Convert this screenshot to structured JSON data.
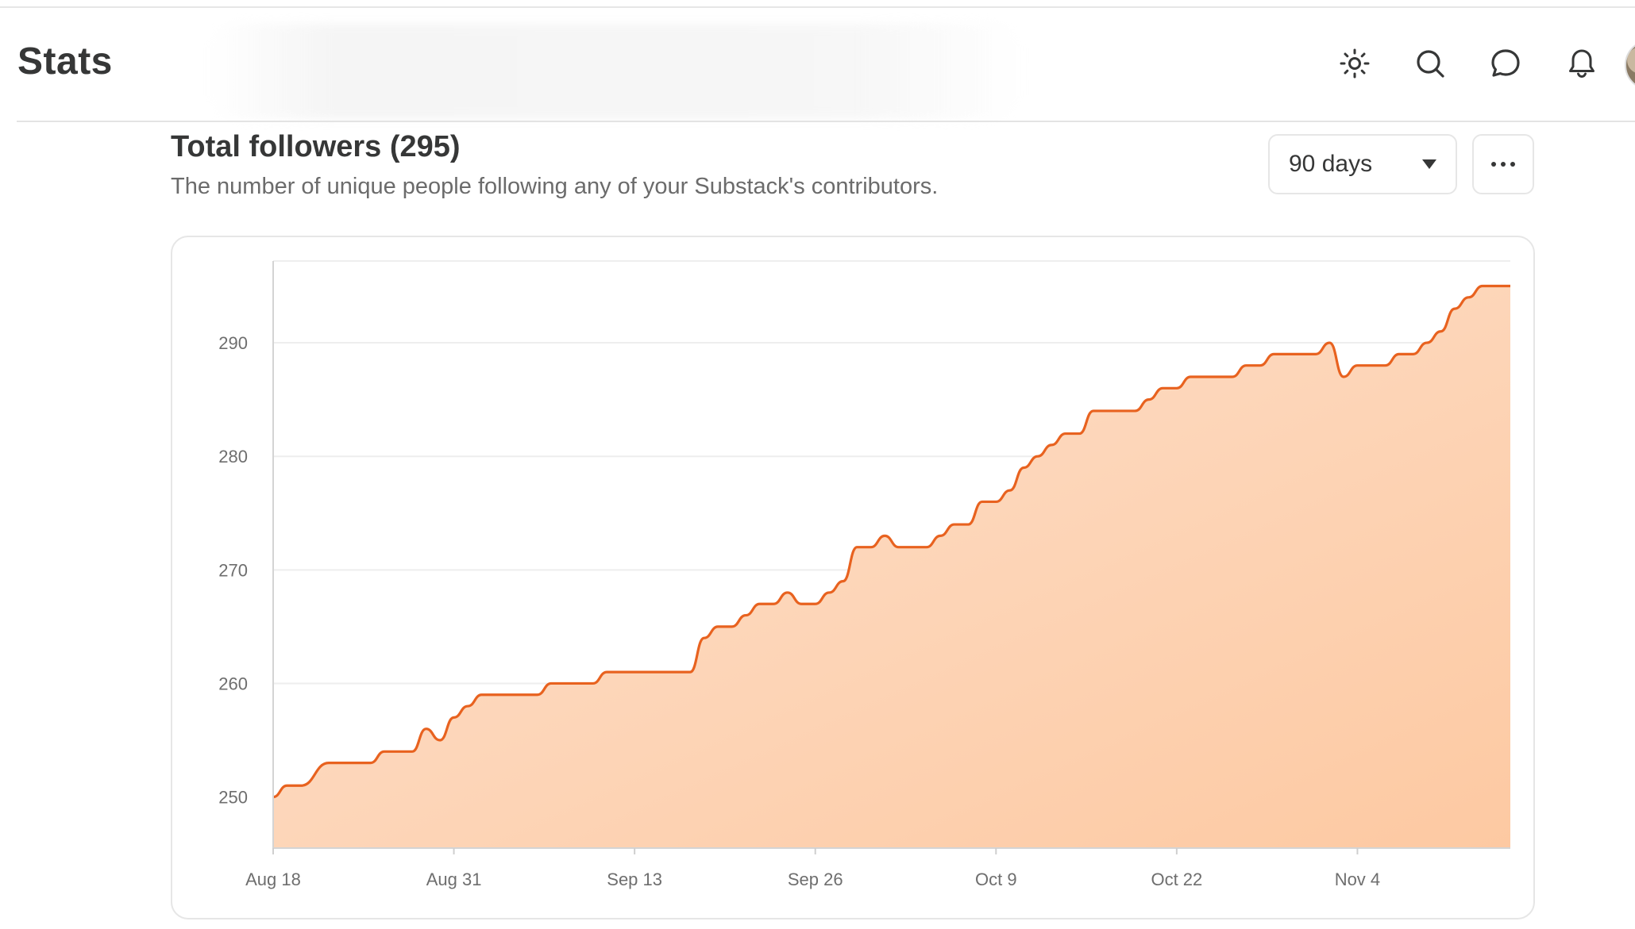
{
  "header": {
    "title": "Stats",
    "icons": [
      "sun-icon",
      "search-icon",
      "chat-icon",
      "bell-icon"
    ]
  },
  "section": {
    "title": "Total followers (295)",
    "subtitle": "The number of unique people following any of your Substack's contributors."
  },
  "controls": {
    "range_label": "90 days",
    "more_icon": "more-horizontal-icon"
  },
  "colors": {
    "line": "#e8621f",
    "fill_top": "#fdc9a2",
    "fill_bottom": "#fde2cf",
    "grid": "#eeeeee",
    "text": "#363737",
    "muted": "#6b6b6b"
  },
  "chart_data": {
    "type": "area",
    "title": "",
    "xlabel": "",
    "ylabel": "",
    "x_tick_labels": [
      "Aug 18",
      "Aug 31",
      "Sep 13",
      "Sep 26",
      "Oct 9",
      "Oct 22",
      "Nov 4"
    ],
    "y_ticks": [
      250,
      260,
      270,
      280,
      290
    ],
    "ylim": [
      245.5,
      297.2
    ],
    "grid": true,
    "series": [
      {
        "name": "",
        "points": [
          {
            "x": "Aug 18",
            "y": 250
          },
          {
            "x": "Aug 19",
            "y": 251
          },
          {
            "x": "Aug 20",
            "y": 251
          },
          {
            "x": "Aug 22",
            "y": 253
          },
          {
            "x": "Aug 25",
            "y": 253
          },
          {
            "x": "Aug 26",
            "y": 254
          },
          {
            "x": "Aug 28",
            "y": 254
          },
          {
            "x": "Aug 29",
            "y": 256
          },
          {
            "x": "Aug 30",
            "y": 255
          },
          {
            "x": "Aug 31",
            "y": 257
          },
          {
            "x": "Sep 1",
            "y": 258
          },
          {
            "x": "Sep 2",
            "y": 259
          },
          {
            "x": "Sep 6",
            "y": 259
          },
          {
            "x": "Sep 7",
            "y": 260
          },
          {
            "x": "Sep 10",
            "y": 260
          },
          {
            "x": "Sep 11",
            "y": 261
          },
          {
            "x": "Sep 17",
            "y": 261
          },
          {
            "x": "Sep 18",
            "y": 264
          },
          {
            "x": "Sep 19",
            "y": 265
          },
          {
            "x": "Sep 20",
            "y": 265
          },
          {
            "x": "Sep 21",
            "y": 266
          },
          {
            "x": "Sep 22",
            "y": 267
          },
          {
            "x": "Sep 23",
            "y": 267
          },
          {
            "x": "Sep 24",
            "y": 268
          },
          {
            "x": "Sep 25",
            "y": 267
          },
          {
            "x": "Sep 26",
            "y": 267
          },
          {
            "x": "Sep 27",
            "y": 268
          },
          {
            "x": "Sep 28",
            "y": 269
          },
          {
            "x": "Sep 29",
            "y": 272
          },
          {
            "x": "Sep 30",
            "y": 272
          },
          {
            "x": "Oct 1",
            "y": 273
          },
          {
            "x": "Oct 2",
            "y": 272
          },
          {
            "x": "Oct 4",
            "y": 272
          },
          {
            "x": "Oct 5",
            "y": 273
          },
          {
            "x": "Oct 6",
            "y": 274
          },
          {
            "x": "Oct 7",
            "y": 274
          },
          {
            "x": "Oct 8",
            "y": 276
          },
          {
            "x": "Oct 9",
            "y": 276
          },
          {
            "x": "Oct 10",
            "y": 277
          },
          {
            "x": "Oct 11",
            "y": 279
          },
          {
            "x": "Oct 12",
            "y": 280
          },
          {
            "x": "Oct 13",
            "y": 281
          },
          {
            "x": "Oct 14",
            "y": 282
          },
          {
            "x": "Oct 15",
            "y": 282
          },
          {
            "x": "Oct 16",
            "y": 284
          },
          {
            "x": "Oct 19",
            "y": 284
          },
          {
            "x": "Oct 20",
            "y": 285
          },
          {
            "x": "Oct 21",
            "y": 286
          },
          {
            "x": "Oct 22",
            "y": 286
          },
          {
            "x": "Oct 23",
            "y": 287
          },
          {
            "x": "Oct 26",
            "y": 287
          },
          {
            "x": "Oct 27",
            "y": 288
          },
          {
            "x": "Oct 28",
            "y": 288
          },
          {
            "x": "Oct 29",
            "y": 289
          },
          {
            "x": "Nov 1",
            "y": 289
          },
          {
            "x": "Nov 2",
            "y": 290
          },
          {
            "x": "Nov 3",
            "y": 287
          },
          {
            "x": "Nov 4",
            "y": 288
          },
          {
            "x": "Nov 6",
            "y": 288
          },
          {
            "x": "Nov 7",
            "y": 289
          },
          {
            "x": "Nov 8",
            "y": 289
          },
          {
            "x": "Nov 9",
            "y": 290
          },
          {
            "x": "Nov 10",
            "y": 291
          },
          {
            "x": "Nov 11",
            "y": 293
          },
          {
            "x": "Nov 12",
            "y": 294
          },
          {
            "x": "Nov 13",
            "y": 295
          },
          {
            "x": "Nov 15",
            "y": 295
          }
        ]
      }
    ]
  }
}
